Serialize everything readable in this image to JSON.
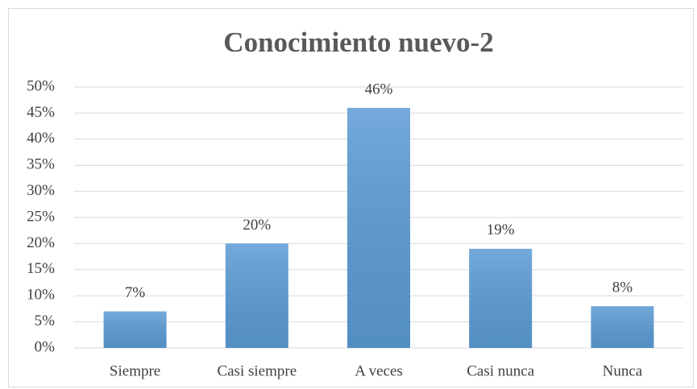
{
  "chart_data": {
    "type": "bar",
    "title": "Conocimiento nuevo-2",
    "categories": [
      "Siempre",
      "Casi siempre",
      "A veces",
      "Casi nunca",
      "Nunca"
    ],
    "values": [
      7,
      20,
      46,
      19,
      8
    ],
    "value_labels": [
      "7%",
      "20%",
      "46%",
      "19%",
      "8%"
    ],
    "color": "#5b9bd5",
    "ylim": [
      0,
      50
    ],
    "yticks": [
      {
        "value": 0,
        "label": "0%"
      },
      {
        "value": 5,
        "label": "5%"
      },
      {
        "value": 10,
        "label": "10%"
      },
      {
        "value": 15,
        "label": "15%"
      },
      {
        "value": 20,
        "label": "20%"
      },
      {
        "value": 25,
        "label": "25%"
      },
      {
        "value": 30,
        "label": "30%"
      },
      {
        "value": 35,
        "label": "35%"
      },
      {
        "value": 40,
        "label": "40%"
      },
      {
        "value": 45,
        "label": "45%"
      },
      {
        "value": 50,
        "label": "50%"
      }
    ],
    "grid": true
  }
}
